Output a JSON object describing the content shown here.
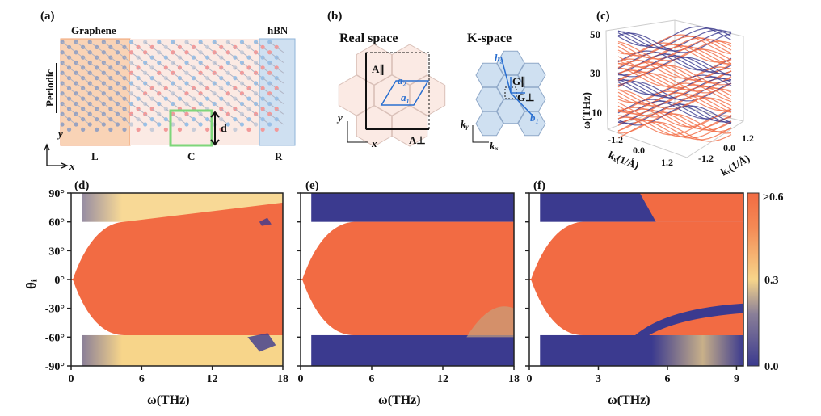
{
  "colors": {
    "high": "#f26b43",
    "mid": "#f7d58a",
    "low": "#3b3a8f",
    "hbn": "#cfe0f1",
    "graphene": "#f9d3b6",
    "center": "#fbeae4",
    "green": "#7ed67a"
  },
  "panel_a": {
    "label": "(a)",
    "left_title": "Graphene",
    "right_title": "hBN",
    "periodic": "Periodic",
    "L": "L",
    "C": "C",
    "R": "R",
    "d": "d",
    "x": "x",
    "y": "y"
  },
  "panel_b": {
    "label": "(b)",
    "real_title": "Real space",
    "k_title": "K-space",
    "A_par": "A∥",
    "A_perp": "A⊥",
    "a1": "a₁",
    "a2": "a₂",
    "b1": "b₁",
    "b2": "b₂",
    "G_par": "G∥",
    "G_perp": "G⊥",
    "x": "x",
    "y": "y",
    "kx": "kₓ",
    "ky": "kᵧ"
  },
  "panel_c": {
    "label": "(c)",
    "zlabel": "ω(THz)",
    "zticks": [
      "50",
      "30",
      "10"
    ],
    "kx_label": "kₓ(1/Å)",
    "ky_label": "kᵧ(1/Å)",
    "kx_ticks": [
      "-1.2",
      "0.0",
      "1.2"
    ],
    "ky_ticks": [
      "1.2",
      "0.0",
      "-1.2"
    ]
  },
  "chart_data": [
    {
      "panel": "(d)",
      "type": "heatmap",
      "xlabel": "ω(THz)",
      "ylabel": "θᵢ",
      "xlim": [
        0,
        18
      ],
      "ylim": [
        -90,
        90
      ],
      "xticks": [
        "0",
        "6",
        "12",
        "18"
      ],
      "yticks": [
        "90°",
        "60°",
        "30°",
        "0°",
        "-30°",
        "-60°",
        "-90°"
      ]
    },
    {
      "panel": "(e)",
      "type": "heatmap",
      "xlabel": "ω(THz)",
      "xlim": [
        0,
        18
      ],
      "ylim": [
        -90,
        90
      ],
      "xticks": [
        "0",
        "6",
        "12",
        "18"
      ]
    },
    {
      "panel": "(f)",
      "type": "heatmap",
      "xlabel": "ω(THz)",
      "xlim": [
        0,
        9.3
      ],
      "ylim": [
        -90,
        90
      ],
      "xticks": [
        "0",
        "3",
        "6",
        "9"
      ],
      "colorbar": {
        "range": [
          0,
          0.6
        ],
        "ticks": [
          ">0.6",
          "0.3",
          "0.0"
        ]
      }
    }
  ]
}
